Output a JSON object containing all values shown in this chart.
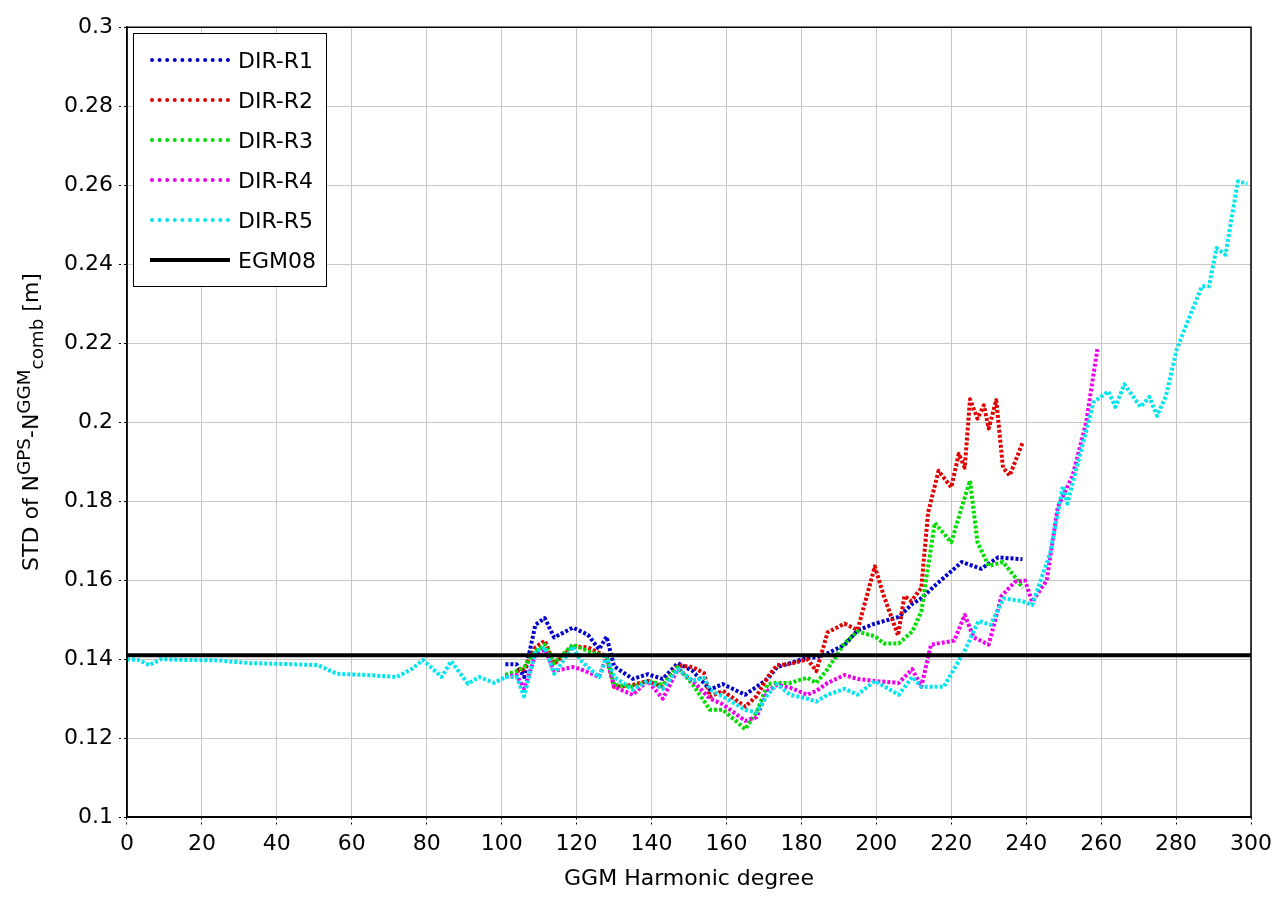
{
  "chart_data": {
    "type": "line",
    "xlabel": "GGM Harmonic degree",
    "ylabel": "STD of N$^{GPS}$-N$^{GGM}$$_{comb}$ [m]",
    "xlim": [
      0,
      300
    ],
    "xticks": [
      0,
      20,
      40,
      60,
      80,
      100,
      120,
      140,
      160,
      180,
      200,
      220,
      240,
      260,
      280,
      300
    ],
    "ylim": [
      0.1,
      0.3
    ],
    "yticks": [
      0.1,
      0.12,
      0.14,
      0.16,
      0.18,
      0.2,
      0.22,
      0.24,
      0.26,
      0.28,
      0.3
    ],
    "grid": true,
    "legend": "top left",
    "line_style": "dotted",
    "series": [
      {
        "name": "DIR-R1",
        "color": "#0000cc",
        "x": [
          101,
          104,
          106,
          109,
          111.5,
          114,
          119,
          123,
          126,
          128,
          130,
          135,
          139,
          143,
          147,
          151,
          155.6,
          159,
          165,
          168,
          171,
          173.5,
          177,
          181.6,
          184,
          187,
          191.5,
          195,
          199.6,
          206,
          209.6,
          212,
          215.6,
          222.8,
          228,
          232.5,
          239
        ],
        "values": [
          0.1387,
          0.1387,
          0.1355,
          0.1487,
          0.1504,
          0.1455,
          0.148,
          0.1462,
          0.1425,
          0.1457,
          0.1382,
          0.135,
          0.1362,
          0.135,
          0.139,
          0.137,
          0.1323,
          0.1337,
          0.131,
          0.133,
          0.135,
          0.138,
          0.139,
          0.1404,
          0.1404,
          0.1415,
          0.1436,
          0.1473,
          0.149,
          0.1507,
          0.154,
          0.1554,
          0.1586,
          0.1646,
          0.1629,
          0.1658,
          0.1653
        ]
      },
      {
        "name": "DIR-R2",
        "color": "#e00000",
        "x": [
          104,
          106,
          109,
          111.5,
          114,
          119,
          123,
          128,
          130,
          135,
          139,
          143,
          147,
          151,
          154,
          155.6,
          159,
          165,
          168,
          171,
          173.5,
          177,
          181.6,
          184,
          187,
          191.5,
          195,
          199.6,
          202,
          205.8,
          207.5,
          209.3,
          212,
          213.8,
          216.6,
          220,
          222,
          223.6,
          225,
          227,
          228.7,
          230,
          232,
          233.8,
          235.6,
          239
        ],
        "values": [
          0.137,
          0.1375,
          0.143,
          0.1447,
          0.1388,
          0.1432,
          0.143,
          0.1407,
          0.133,
          0.1335,
          0.1345,
          0.133,
          0.1385,
          0.138,
          0.1365,
          0.1305,
          0.132,
          0.128,
          0.1306,
          0.1355,
          0.1385,
          0.1388,
          0.14,
          0.137,
          0.1468,
          0.149,
          0.1474,
          0.1635,
          0.156,
          0.146,
          0.156,
          0.1547,
          0.158,
          0.177,
          0.1877,
          0.1835,
          0.192,
          0.1885,
          0.2058,
          0.2009,
          0.2043,
          0.1984,
          0.2056,
          0.1885,
          0.1865,
          0.1947
        ]
      },
      {
        "name": "DIR-R3",
        "color": "#00dd00",
        "x": [
          101,
          104,
          106,
          109,
          111.5,
          114,
          119,
          123,
          128,
          130,
          135,
          139,
          143,
          147,
          151,
          155.6,
          159,
          165,
          168,
          171,
          173.5,
          177,
          181.6,
          184,
          187,
          191.5,
          195,
          199.6,
          202,
          206,
          209.6,
          212,
          215.6,
          220,
          222.8,
          225,
          227,
          230,
          233.8,
          237.4,
          239
        ],
        "values": [
          0.136,
          0.137,
          0.138,
          0.142,
          0.1437,
          0.139,
          0.1437,
          0.142,
          0.1407,
          0.1335,
          0.133,
          0.1345,
          0.1335,
          0.138,
          0.1336,
          0.1272,
          0.1272,
          0.1223,
          0.1265,
          0.1337,
          0.134,
          0.134,
          0.1353,
          0.134,
          0.1375,
          0.144,
          0.147,
          0.1458,
          0.144,
          0.144,
          0.147,
          0.152,
          0.1745,
          0.1696,
          0.1785,
          0.1852,
          0.1696,
          0.1636,
          0.1646,
          0.1604,
          0.158
        ]
      },
      {
        "name": "DIR-R4",
        "color": "#ee00ee",
        "x": [
          101,
          104,
          106,
          109,
          111.5,
          114,
          119,
          121,
          126,
          128,
          130,
          135,
          139,
          143,
          147,
          151,
          155.6,
          159,
          165,
          168,
          171,
          173.5,
          177,
          181.6,
          184,
          187,
          191.5,
          195,
          199.6,
          206,
          209.6,
          212,
          214.6,
          220.8,
          223.6,
          226,
          230,
          233.4,
          237,
          239.7,
          241.6,
          245.5,
          248.4,
          252.4,
          256,
          259
        ],
        "values": [
          0.1355,
          0.136,
          0.1325,
          0.141,
          0.1425,
          0.137,
          0.138,
          0.1375,
          0.1355,
          0.1407,
          0.133,
          0.131,
          0.1345,
          0.13,
          0.1375,
          0.1345,
          0.13,
          0.1286,
          0.1244,
          0.1253,
          0.132,
          0.1335,
          0.1328,
          0.131,
          0.132,
          0.134,
          0.136,
          0.135,
          0.1345,
          0.134,
          0.1375,
          0.133,
          0.1437,
          0.1447,
          0.1512,
          0.1455,
          0.1437,
          0.156,
          0.1596,
          0.1599,
          0.1545,
          0.16,
          0.1785,
          0.1865,
          0.1999,
          0.2185
        ]
      },
      {
        "name": "DIR-R5",
        "color": "#00e5ee",
        "x": [
          0,
          3,
          6,
          9,
          15,
          24,
          33,
          42,
          51,
          56,
          64,
          72,
          76,
          79,
          84,
          86.5,
          91,
          94,
          98,
          101,
          104,
          106,
          109,
          111.5,
          114,
          119,
          121,
          123,
          126,
          128,
          130,
          135,
          139,
          143,
          147,
          151,
          154,
          155.6,
          159,
          165,
          168,
          171,
          173.5,
          177,
          181.6,
          184,
          187,
          191.5,
          195,
          199.6,
          206,
          209.6,
          212,
          218,
          223.6,
          227.3,
          230.5,
          234,
          239,
          241.6,
          246.4,
          249.8,
          251,
          258,
          261.9,
          263.8,
          266.2,
          270.5,
          272.9,
          274.9,
          277.3,
          280.2,
          285,
          286.9,
          288.8,
          290.8,
          293.2,
          296.5,
          299
        ],
        "values": [
          0.14,
          0.1398,
          0.1385,
          0.14,
          0.1398,
          0.1397,
          0.139,
          0.1388,
          0.1385,
          0.1363,
          0.136,
          0.1355,
          0.1375,
          0.1398,
          0.1355,
          0.1395,
          0.1338,
          0.1355,
          0.134,
          0.1355,
          0.1355,
          0.1306,
          0.142,
          0.143,
          0.1363,
          0.1432,
          0.1398,
          0.138,
          0.1355,
          0.1407,
          0.1355,
          0.1323,
          0.1345,
          0.1325,
          0.1375,
          0.1345,
          0.1353,
          0.1323,
          0.1306,
          0.1272,
          0.1265,
          0.131,
          0.1337,
          0.131,
          0.13,
          0.1293,
          0.131,
          0.1325,
          0.131,
          0.1345,
          0.131,
          0.1355,
          0.133,
          0.133,
          0.1422,
          0.1497,
          0.1487,
          0.1554,
          0.1547,
          0.1537,
          0.1669,
          0.1838,
          0.1794,
          0.2051,
          0.2078,
          0.2039,
          0.2096,
          0.2039,
          0.2064,
          0.2016,
          0.2066,
          0.2185,
          0.23,
          0.2344,
          0.2344,
          0.2441,
          0.2424,
          0.261,
          0.2604
        ]
      },
      {
        "name": "EGM08",
        "color": "#000000",
        "line_style": "solid",
        "x": [
          0,
          300
        ],
        "values": [
          0.141,
          0.141
        ]
      }
    ]
  }
}
